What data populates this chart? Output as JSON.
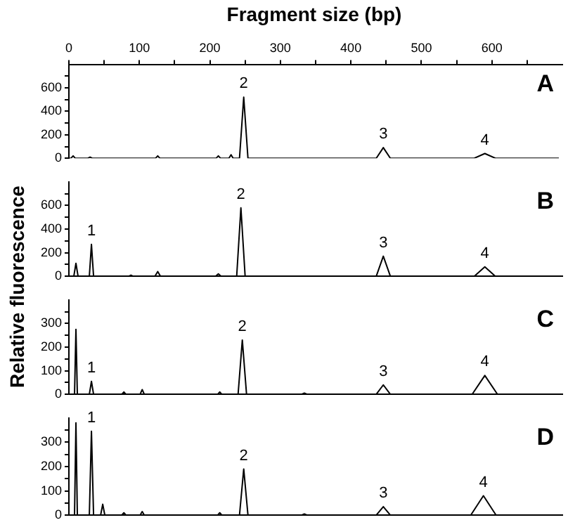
{
  "chart_data": [
    {
      "type": "line",
      "title": "A",
      "xlabel": "Fragment size (bp)",
      "ylabel": "Relative fluorescence",
      "xlim": [
        0,
        700
      ],
      "xticks": [
        0,
        {
          "value": 50,
          "label": null
        },
        100,
        {
          "value": 150,
          "label": null
        },
        200,
        {
          "value": 250,
          "label": null
        },
        300,
        {
          "value": 350,
          "label": null
        },
        400,
        {
          "value": 450,
          "label": null
        },
        500,
        {
          "value": 550,
          "label": null
        },
        600,
        {
          "value": 650,
          "label": null
        }
      ],
      "ylim": [
        0,
        800
      ],
      "yticks": [
        0,
        {
          "value": 100,
          "label": null
        },
        200,
        {
          "value": 300,
          "label": null
        },
        400,
        {
          "value": 500,
          "label": null
        },
        600,
        {
          "value": 700,
          "label": null
        }
      ],
      "grid": false,
      "marker": "none",
      "line_style": "solid",
      "series": [
        {
          "color": "#000000",
          "x": [
            0,
            3,
            6,
            9,
            27,
            30,
            33,
            123,
            126,
            129,
            209,
            212,
            215,
            227,
            230,
            233,
            242,
            248,
            254,
            436,
            446,
            456,
            575,
            590,
            605,
            695
          ],
          "values": [
            0,
            0,
            20,
            0,
            0,
            10,
            0,
            0,
            20,
            0,
            0,
            20,
            0,
            0,
            30,
            0,
            0,
            520,
            0,
            0,
            90,
            0,
            0,
            40,
            0,
            0
          ]
        }
      ],
      "annotations": [
        {
          "text": "2",
          "x": 248,
          "y": 520
        },
        {
          "text": "3",
          "x": 446,
          "y": 90
        },
        {
          "text": "4",
          "x": 590,
          "y": 40
        }
      ]
    },
    {
      "type": "line",
      "title": "B",
      "xlim": [
        0,
        700
      ],
      "ylim": [
        0,
        800
      ],
      "yticks": [
        0,
        {
          "value": 100,
          "label": null
        },
        200,
        {
          "value": 300,
          "label": null
        },
        400,
        {
          "value": 500,
          "label": null
        },
        600,
        {
          "value": 700,
          "label": null
        }
      ],
      "grid": false,
      "marker": "none",
      "line_style": "solid",
      "tick_labels": "y",
      "series": [
        {
          "color": "#000000",
          "x": [
            0,
            7,
            10,
            13,
            29,
            32,
            35,
            85,
            88,
            91,
            122,
            126,
            130,
            208,
            212,
            216,
            238,
            244,
            250,
            436,
            446,
            456,
            575,
            590,
            605,
            695
          ],
          "values": [
            0,
            0,
            110,
            0,
            0,
            270,
            0,
            0,
            10,
            0,
            0,
            40,
            0,
            0,
            20,
            0,
            0,
            580,
            0,
            0,
            170,
            0,
            0,
            80,
            0,
            0
          ]
        }
      ],
      "annotations": [
        {
          "text": "1",
          "x": 32,
          "y": 270
        },
        {
          "text": "2",
          "x": 244,
          "y": 580
        },
        {
          "text": "3",
          "x": 446,
          "y": 170
        },
        {
          "text": "4",
          "x": 590,
          "y": 80
        }
      ]
    },
    {
      "type": "line",
      "title": "C",
      "xlim": [
        0,
        700
      ],
      "ylim": [
        0,
        400
      ],
      "yticks": [
        0,
        {
          "value": 50,
          "label": null
        },
        100,
        {
          "value": 150,
          "label": null
        },
        200,
        {
          "value": 250,
          "label": null
        },
        300,
        {
          "value": 350,
          "label": null
        }
      ],
      "grid": false,
      "marker": "none",
      "line_style": "solid",
      "tick_labels": "y",
      "series": [
        {
          "color": "#000000",
          "x": [
            0,
            8,
            10,
            12,
            29,
            32,
            35,
            75,
            78,
            81,
            101,
            104,
            107,
            211,
            214,
            217,
            240,
            246,
            252,
            330,
            334,
            338,
            436,
            446,
            456,
            572,
            590,
            608,
            695
          ],
          "values": [
            0,
            0,
            275,
            0,
            0,
            55,
            0,
            0,
            10,
            0,
            0,
            20,
            0,
            0,
            10,
            0,
            0,
            230,
            0,
            0,
            5,
            0,
            0,
            40,
            0,
            0,
            80,
            0,
            0
          ]
        }
      ],
      "annotations": [
        {
          "text": "1",
          "x": 32,
          "y": 55
        },
        {
          "text": "2",
          "x": 246,
          "y": 230
        },
        {
          "text": "3",
          "x": 446,
          "y": 40
        },
        {
          "text": "4",
          "x": 590,
          "y": 80
        }
      ]
    },
    {
      "type": "line",
      "title": "D",
      "xlim": [
        0,
        700
      ],
      "ylim": [
        0,
        400
      ],
      "yticks": [
        0,
        {
          "value": 50,
          "label": null
        },
        100,
        {
          "value": 150,
          "label": null
        },
        200,
        {
          "value": 250,
          "label": null
        },
        300,
        {
          "value": 350,
          "label": null
        }
      ],
      "grid": false,
      "marker": "none",
      "line_style": "solid",
      "tick_labels": "y",
      "series": [
        {
          "color": "#000000",
          "x": [
            0,
            8,
            10,
            12,
            29,
            32,
            35,
            45,
            48,
            51,
            75,
            78,
            81,
            101,
            104,
            107,
            211,
            214,
            217,
            242,
            248,
            254,
            330,
            334,
            338,
            436,
            446,
            456,
            570,
            588,
            606,
            695
          ],
          "values": [
            0,
            0,
            380,
            0,
            0,
            345,
            0,
            0,
            45,
            0,
            0,
            10,
            0,
            0,
            15,
            0,
            0,
            10,
            0,
            0,
            190,
            0,
            0,
            5,
            0,
            0,
            35,
            0,
            0,
            80,
            0,
            0
          ]
        }
      ],
      "annotations": [
        {
          "text": "1",
          "x": 32,
          "y": 345
        },
        {
          "text": "2",
          "x": 248,
          "y": 190
        },
        {
          "text": "3",
          "x": 446,
          "y": 35
        },
        {
          "text": "4",
          "x": 588,
          "y": 80
        }
      ]
    }
  ]
}
